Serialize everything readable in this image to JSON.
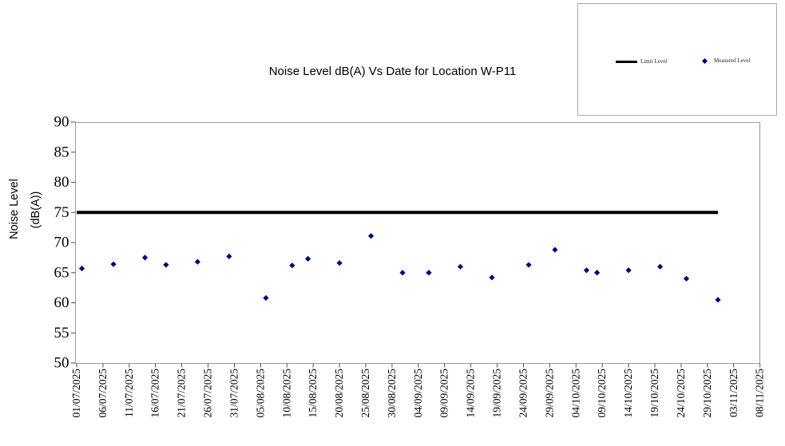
{
  "legend": {
    "items": [
      {
        "label": "Limit Level",
        "swatch": "line",
        "color": "#000000"
      },
      {
        "label": "Measured Level",
        "swatch": "diamond",
        "color": "#000080"
      }
    ]
  },
  "chart_data": {
    "type": "scatter",
    "title": "Noise Level dB(A) Vs Date for Location W-P11",
    "ylabel_lines": [
      "Noise Level",
      "(dB(A))"
    ],
    "xlabel": "",
    "ylim": [
      50,
      90
    ],
    "y_ticks": [
      50,
      55,
      60,
      65,
      70,
      75,
      80,
      85,
      90
    ],
    "grid": false,
    "legend_position": "top-right",
    "x_tick_labels": [
      "01/07/2025",
      "06/07/2025",
      "11/07/2025",
      "16/07/2025",
      "21/07/2025",
      "26/07/2025",
      "31/07/2025",
      "05/08/2025",
      "10/08/2025",
      "15/08/2025",
      "20/08/2025",
      "25/08/2025",
      "30/08/2025",
      "04/09/2025",
      "09/09/2025",
      "14/09/2025",
      "19/09/2025",
      "24/09/2025",
      "29/09/2025",
      "04/10/2025",
      "09/10/2025",
      "14/10/2025",
      "19/10/2025",
      "24/10/2025",
      "29/10/2025",
      "03/11/2025",
      "08/11/2025"
    ],
    "series": [
      {
        "name": "Limit Level",
        "type": "line",
        "color": "#000000",
        "stroke_width": 4,
        "value": 75,
        "x_start": "01/07/2025",
        "x_end": "31/10/2025"
      },
      {
        "name": "Measured Level",
        "type": "scatter",
        "marker": "diamond",
        "color": "#000080",
        "points": [
          [
            "02/07/2025",
            65.7
          ],
          [
            "08/07/2025",
            66.4
          ],
          [
            "14/07/2025",
            67.5
          ],
          [
            "18/07/2025",
            66.3
          ],
          [
            "24/07/2025",
            66.8
          ],
          [
            "30/07/2025",
            67.7
          ],
          [
            "06/08/2025",
            60.8
          ],
          [
            "11/08/2025",
            66.2
          ],
          [
            "14/08/2025",
            67.3
          ],
          [
            "20/08/2025",
            66.6
          ],
          [
            "26/08/2025",
            71.1
          ],
          [
            "01/09/2025",
            65.0
          ],
          [
            "06/09/2025",
            65.0
          ],
          [
            "12/09/2025",
            66.0
          ],
          [
            "18/09/2025",
            64.2
          ],
          [
            "25/09/2025",
            66.3
          ],
          [
            "30/09/2025",
            68.8
          ],
          [
            "06/10/2025",
            65.4
          ],
          [
            "08/10/2025",
            65.0
          ],
          [
            "14/10/2025",
            65.4
          ],
          [
            "20/10/2025",
            66.0
          ],
          [
            "25/10/2025",
            64.0
          ],
          [
            "31/10/2025",
            60.5
          ]
        ]
      }
    ]
  }
}
